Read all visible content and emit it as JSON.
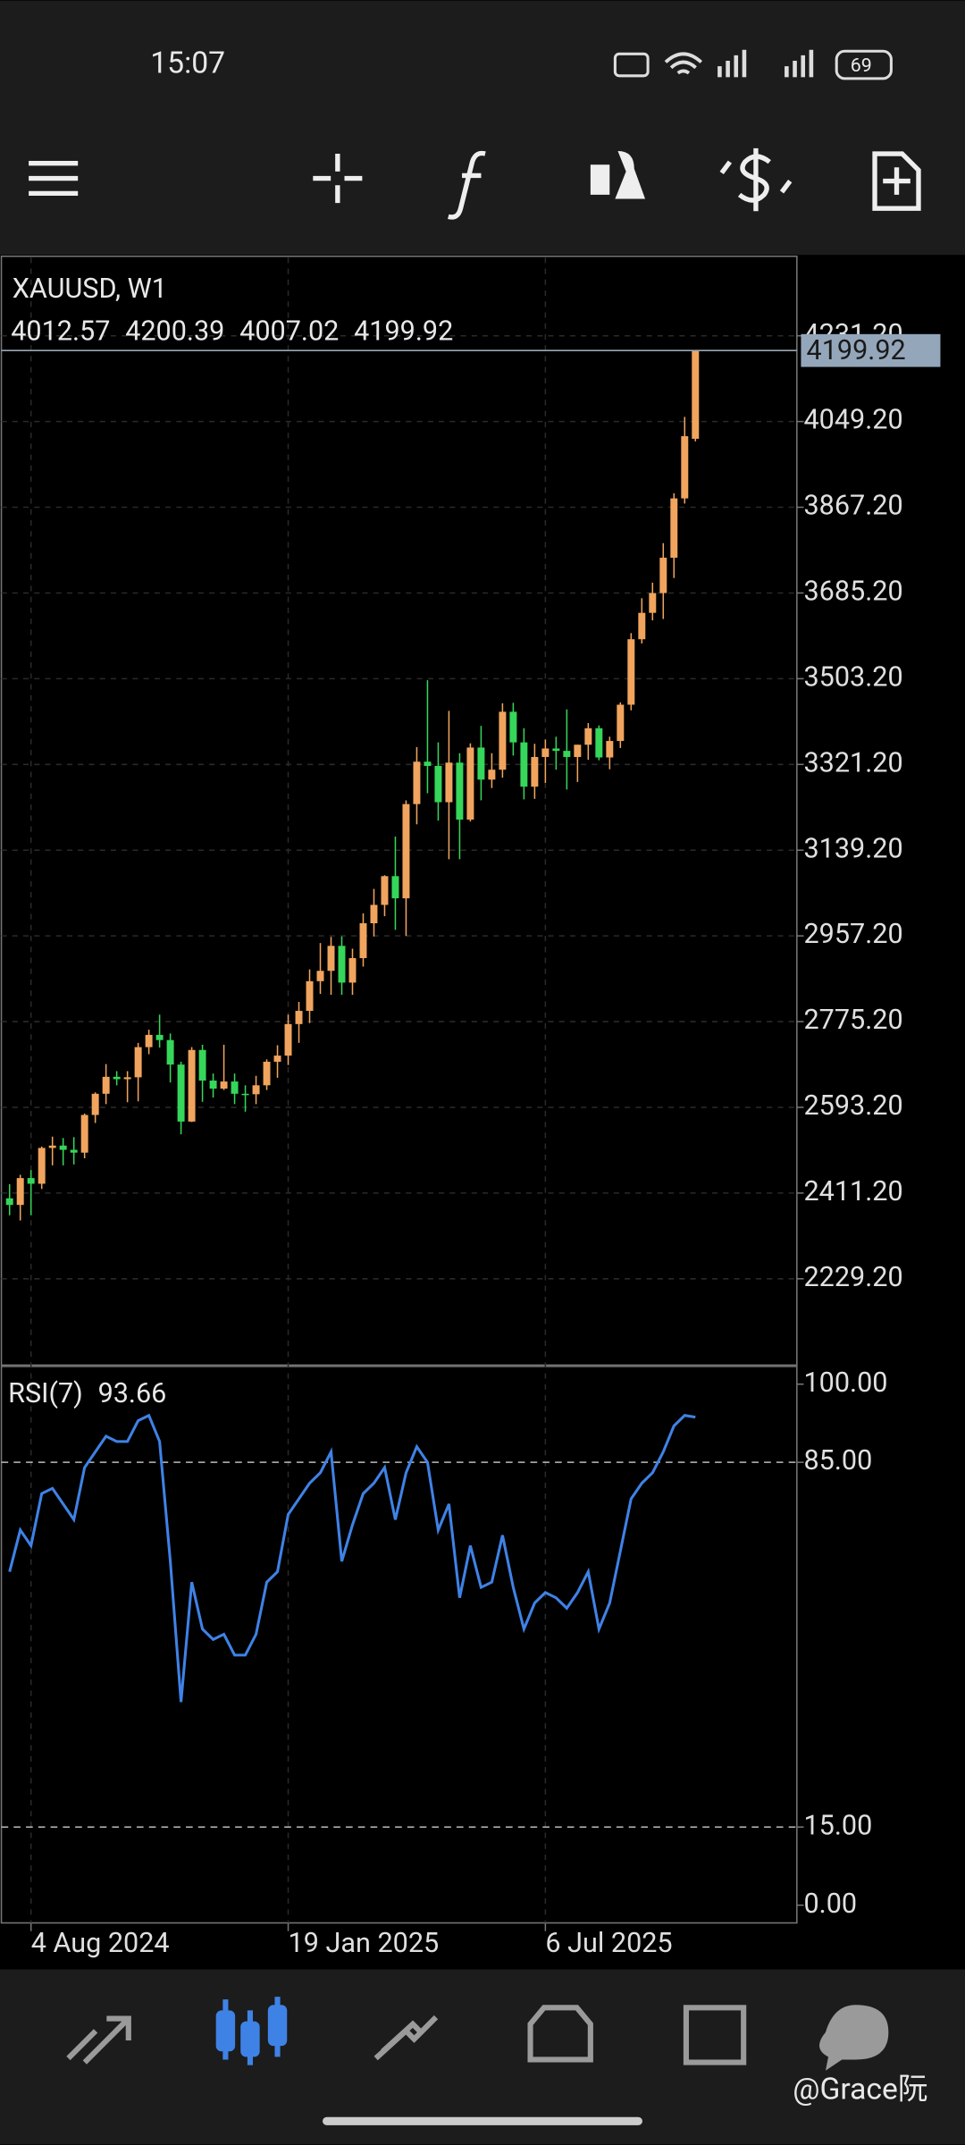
{
  "status_bar": {
    "time": "15:07",
    "battery": "69"
  },
  "watermark": "@Grace阮",
  "chart_data": [
    {
      "type": "candlestick",
      "title": "XAUUSD, W1",
      "open": [
        2400,
        2386,
        2443,
        2431,
        2507,
        2512,
        2503,
        2497,
        2577,
        2622,
        2658,
        2653,
        2657,
        2721,
        2747,
        2736,
        2684,
        2563,
        2715,
        2650,
        2633,
        2648,
        2622,
        2621,
        2640,
        2690,
        2703,
        2770,
        2798,
        2861,
        2883,
        2936,
        2858,
        2910,
        2984,
        3023,
        3084,
        3037,
        3237,
        3327,
        3318,
        3241,
        3325,
        3204,
        3357,
        3289,
        3310,
        3433,
        3368,
        3274,
        3337,
        3355,
        3350,
        3337,
        3363,
        3398,
        3336,
        3371,
        3448,
        3587,
        3643,
        3685,
        3760,
        3886,
        4012.57
      ],
      "high": [
        2430,
        2450,
        2460,
        2510,
        2531,
        2528,
        2530,
        2580,
        2625,
        2685,
        2670,
        2670,
        2730,
        2758,
        2790,
        2750,
        2690,
        2721,
        2726,
        2665,
        2726,
        2665,
        2640,
        2660,
        2695,
        2725,
        2790,
        2817,
        2886,
        2942,
        2955,
        2956,
        2930,
        3005,
        3057,
        3086,
        3168,
        3245,
        3358,
        3500,
        3368,
        3435,
        3345,
        3366,
        3403,
        3345,
        3451,
        3452,
        3398,
        3365,
        3374,
        3380,
        3438,
        3363,
        3409,
        3404,
        3380,
        3453,
        3600,
        3674,
        3707,
        3791,
        3897,
        4059,
        4200.39
      ],
      "low": [
        2364,
        2353,
        2364,
        2420,
        2470,
        2470,
        2472,
        2485,
        2560,
        2600,
        2640,
        2604,
        2606,
        2706,
        2720,
        2646,
        2536,
        2562,
        2605,
        2614,
        2630,
        2600,
        2584,
        2600,
        2630,
        2656,
        2683,
        2730,
        2772,
        2834,
        2832,
        2832,
        2832,
        2892,
        2956,
        2999,
        2970,
        2957,
        3194,
        3260,
        3202,
        3120,
        3120,
        3200,
        3245,
        3271,
        3293,
        3340,
        3247,
        3248,
        3282,
        3310,
        3268,
        3284,
        3331,
        3330,
        3311,
        3356,
        3436,
        3578,
        3627,
        3630,
        3717,
        3875,
        4007.02
      ],
      "close": [
        2386,
        2443,
        2431,
        2507,
        2512,
        2503,
        2497,
        2577,
        2622,
        2658,
        2653,
        2657,
        2721,
        2747,
        2736,
        2684,
        2563,
        2715,
        2650,
        2633,
        2648,
        2622,
        2621,
        2640,
        2690,
        2703,
        2770,
        2798,
        2861,
        2883,
        2936,
        2858,
        2910,
        2984,
        3023,
        3084,
        3037,
        3237,
        3327,
        3318,
        3241,
        3325,
        3204,
        3357,
        3289,
        3310,
        3433,
        3368,
        3274,
        3337,
        3355,
        3350,
        3337,
        3363,
        3398,
        3336,
        3371,
        3448,
        3587,
        3643,
        3685,
        3760,
        3886,
        4018,
        4199.92
      ],
      "up_color": "#f0a45e",
      "down_color": "#35d65a",
      "ylim": [
        2046,
        4400
      ],
      "yticks": [
        {
          "value": 4231.2,
          "label": "4231.20"
        },
        {
          "value": 4049.2,
          "label": "4049.20"
        },
        {
          "value": 3867.2,
          "label": "3867.20"
        },
        {
          "value": 3685.2,
          "label": "3685.20"
        },
        {
          "value": 3503.2,
          "label": "3503.20"
        },
        {
          "value": 3321.2,
          "label": "3321.20"
        },
        {
          "value": 3139.2,
          "label": "3139.20"
        },
        {
          "value": 2957.2,
          "label": "2957.20"
        },
        {
          "value": 2775.2,
          "label": "2775.20"
        },
        {
          "value": 2593.2,
          "label": "2593.20"
        },
        {
          "value": 2411.2,
          "label": "2411.20"
        },
        {
          "value": 2229.2,
          "label": "2229.20"
        }
      ],
      "xticks": [
        {
          "value": 2,
          "label": "4 Aug 2024"
        },
        {
          "value": 26,
          "label": "19 Jan 2025"
        },
        {
          "value": 50,
          "label": "6 Jul 2025"
        }
      ],
      "grid": true
    },
    {
      "type": "line",
      "title": "RSI(7)",
      "color": "#3f82e6",
      "values": [
        64,
        72,
        69,
        79,
        80,
        77,
        74,
        84,
        87,
        90,
        89,
        89,
        93,
        94,
        89,
        66,
        39,
        62,
        53,
        51,
        52,
        48,
        48,
        52,
        62,
        64,
        75,
        78,
        81,
        83,
        87,
        66,
        73,
        79,
        81,
        84,
        74,
        83,
        88,
        85,
        72,
        77,
        59,
        69,
        61,
        62,
        71,
        61,
        53,
        58,
        60,
        59,
        57,
        60,
        64,
        53,
        58,
        68,
        78,
        81,
        83,
        87,
        92,
        94,
        93.66
      ],
      "ylim": [
        -3.4,
        103.4
      ],
      "yticks": [
        {
          "value": 100,
          "label": "100.00"
        },
        {
          "value": 85,
          "label": "85.00"
        },
        {
          "value": 15,
          "label": "15.00"
        },
        {
          "value": 0,
          "label": "0.00"
        }
      ],
      "levels": [
        85,
        15
      ]
    }
  ]
}
